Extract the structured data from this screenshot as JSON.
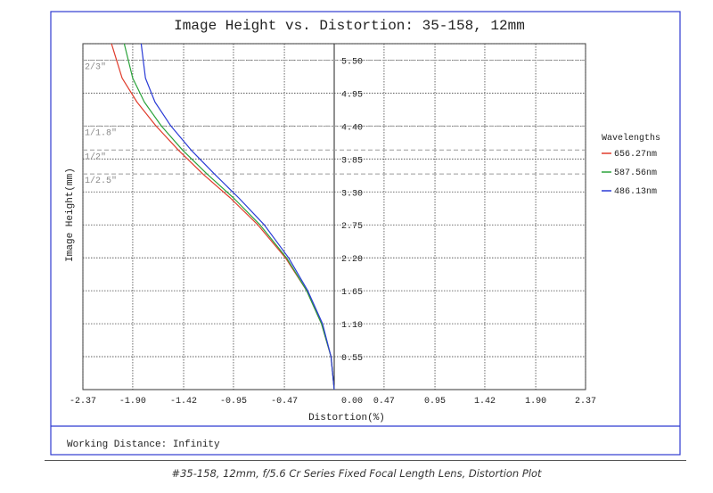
{
  "chart_data": {
    "type": "line",
    "title": "Image Height vs. Distortion: 35-158, 12mm",
    "xlabel": "Distortion(%)",
    "ylabel": "Image Height(mm)",
    "xlim": [
      -2.37,
      2.37
    ],
    "ylim": [
      0,
      5.775
    ],
    "x_ticks": [
      "-2.37",
      "-1.90",
      "-1.42",
      "-0.95",
      "-0.47",
      "0.00",
      "0.47",
      "0.95",
      "1.42",
      "1.90",
      "2.37"
    ],
    "x_tick_values": [
      -2.37,
      -1.9,
      -1.42,
      -0.95,
      -0.47,
      0.0,
      0.47,
      0.95,
      1.42,
      1.9,
      2.37
    ],
    "y_ticks": [
      "0.55",
      "1.10",
      "1.65",
      "2.20",
      "2.75",
      "3.30",
      "3.85",
      "4.40",
      "4.95",
      "5.50"
    ],
    "y_tick_values": [
      0.55,
      1.1,
      1.65,
      2.2,
      2.75,
      3.3,
      3.85,
      4.4,
      4.95,
      5.5
    ],
    "grid": true,
    "sensor_markers": [
      {
        "label": "2/3\"",
        "value": 5.5
      },
      {
        "label": "1/1.8\"",
        "value": 4.4
      },
      {
        "label": "1/2\"",
        "value": 4.0
      },
      {
        "label": "1/2.5\"",
        "value": 3.6
      }
    ],
    "legend": {
      "title": "Wavelengths",
      "position": "right"
    },
    "series": [
      {
        "name": "656.27nm",
        "color": "#e03c2c",
        "x": [
          0.0,
          -0.03,
          -0.12,
          -0.26,
          -0.46,
          -0.72,
          -0.98,
          -1.24,
          -1.47,
          -1.68,
          -1.86,
          -2.0,
          -2.1
        ],
        "y": [
          0.0,
          0.55,
          1.1,
          1.65,
          2.2,
          2.75,
          3.2,
          3.6,
          4.0,
          4.4,
          4.8,
          5.2,
          5.775
        ]
      },
      {
        "name": "587.56nm",
        "color": "#2aa33a",
        "x": [
          0.0,
          -0.03,
          -0.12,
          -0.26,
          -0.45,
          -0.7,
          -0.95,
          -1.2,
          -1.43,
          -1.63,
          -1.79,
          -1.9,
          -1.98
        ],
        "y": [
          0.0,
          0.55,
          1.1,
          1.65,
          2.2,
          2.75,
          3.2,
          3.6,
          4.0,
          4.4,
          4.8,
          5.2,
          5.775
        ]
      },
      {
        "name": "486.13nm",
        "color": "#2a3bd6",
        "x": [
          0.0,
          -0.03,
          -0.11,
          -0.25,
          -0.43,
          -0.66,
          -0.9,
          -1.13,
          -1.35,
          -1.54,
          -1.69,
          -1.78,
          -1.82
        ],
        "y": [
          0.0,
          0.55,
          1.1,
          1.65,
          2.2,
          2.75,
          3.2,
          3.6,
          4.0,
          4.4,
          4.8,
          5.2,
          5.775
        ]
      }
    ]
  },
  "footer": {
    "working_distance": "Working Distance: Infinity"
  },
  "caption": "#35-158, 12mm, f/5.6 Cr Series Fixed Focal Length Lens, Distortion Plot"
}
